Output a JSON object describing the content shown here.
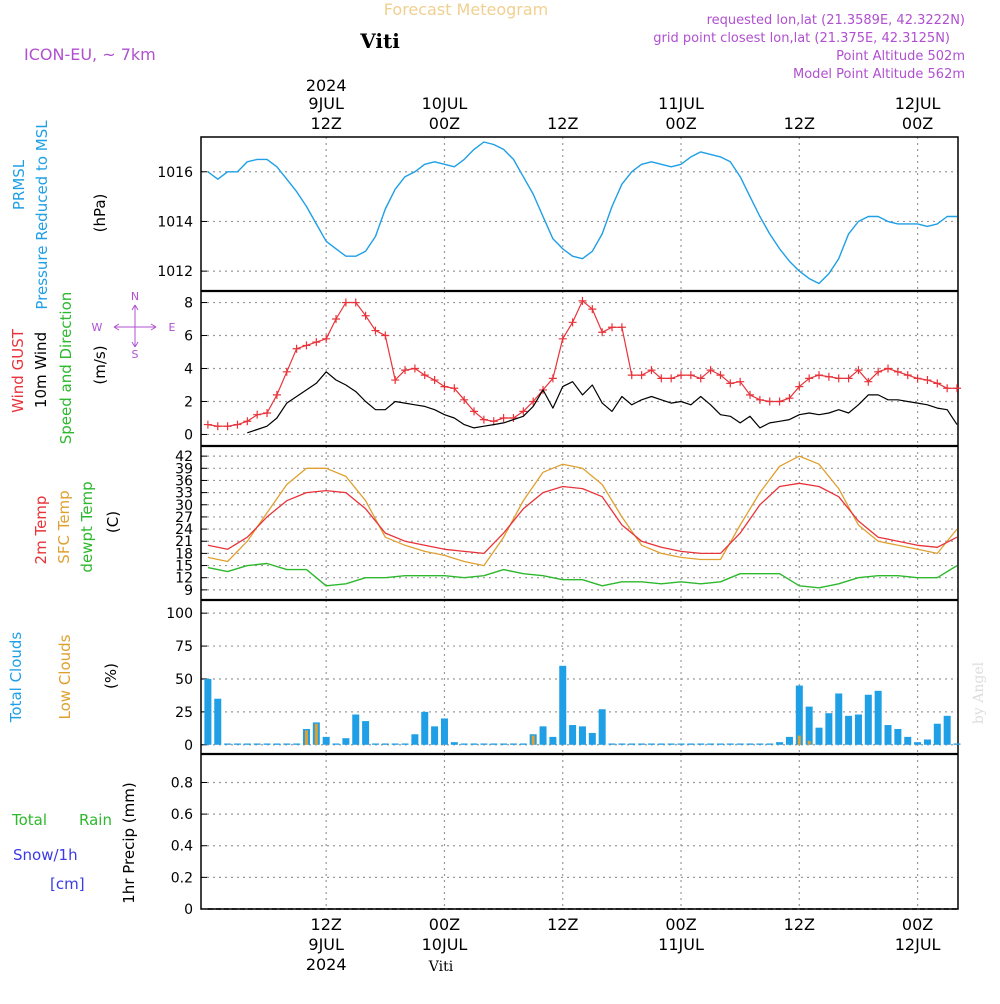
{
  "header": {
    "title": "Forecast Meteogram",
    "station": "Viti",
    "model": "ICON-EU, ~ 7km",
    "requested": "requested lon,lat (21.3589E, 42.3222N)",
    "grid_point": "grid point closest lon,lat (21.375E, 42.3125N)",
    "point_altitude": "Point Altitude 502m",
    "model_altitude": "Model Point Altitude 562m"
  },
  "footer": {
    "station": "Viti",
    "watermark": "by Angel"
  },
  "time_axis": {
    "top_year": "2024",
    "ticks": [
      {
        "x": 12,
        "top": [
          "9JUL",
          "12Z"
        ],
        "bottom": [
          "12Z",
          "9JUL",
          "2024"
        ]
      },
      {
        "x": 24,
        "top": [
          "10JUL",
          "00Z"
        ],
        "bottom": [
          "00Z",
          "10JUL"
        ]
      },
      {
        "x": 36,
        "top": [
          "12Z"
        ],
        "bottom": [
          "12Z"
        ]
      },
      {
        "x": 48,
        "top": [
          "11JUL",
          "00Z"
        ],
        "bottom": [
          "00Z",
          "11JUL"
        ]
      },
      {
        "x": 60,
        "top": [
          "12Z"
        ],
        "bottom": [
          "12Z"
        ]
      },
      {
        "x": 72,
        "top": [
          "12JUL",
          "00Z"
        ],
        "bottom": [
          "00Z",
          "12JUL"
        ]
      }
    ]
  },
  "colors": {
    "pressure": "#1e9fe6",
    "gust": "#e8333a",
    "wind": "#000000",
    "direction_label": "#2db82d",
    "temp2m": "#e8333a",
    "sfc_temp": "#e0a030",
    "dewpt": "#2db82d",
    "total_clouds": "#1e9fe6",
    "low_clouds": "#e0a030",
    "rain": "#2db82d",
    "snow": "#3a3ae6",
    "header_title": "#f0d090",
    "header_info": "#b050d0",
    "compass": "#b050d0"
  },
  "chart_data": [
    {
      "type": "line",
      "panel": "pressure",
      "labels": [
        "PRMSL",
        "Pressure Reduced to MSL",
        "(hPa)"
      ],
      "yticks": [
        1012,
        1014,
        1016
      ],
      "ylim": [
        1011.2,
        1017.4
      ],
      "series": [
        {
          "name": "PRMSL",
          "x": [
            0,
            1,
            2,
            3,
            4,
            5,
            6,
            7,
            8,
            9,
            10,
            11,
            12,
            13,
            14,
            15,
            16,
            17,
            18,
            19,
            20,
            21,
            22,
            23,
            24,
            25,
            26,
            27,
            28,
            29,
            30,
            31,
            32,
            33,
            34,
            35,
            36,
            37,
            38,
            39,
            40,
            41,
            42,
            43,
            44,
            45,
            46,
            47,
            48,
            49,
            50,
            51,
            52,
            53,
            54,
            55,
            56,
            57,
            58,
            59,
            60,
            61,
            62,
            63,
            64,
            65,
            66,
            67,
            68,
            69,
            70,
            71,
            72,
            73,
            74,
            75,
            76
          ],
          "values": [
            1016.0,
            1015.7,
            1016.0,
            1016.0,
            1016.4,
            1016.5,
            1016.5,
            1016.2,
            1015.7,
            1015.2,
            1014.6,
            1013.9,
            1013.2,
            1012.9,
            1012.6,
            1012.6,
            1012.8,
            1013.4,
            1014.5,
            1015.3,
            1015.8,
            1016.0,
            1016.3,
            1016.4,
            1016.3,
            1016.2,
            1016.5,
            1016.9,
            1017.2,
            1017.1,
            1016.9,
            1016.5,
            1015.8,
            1015.1,
            1014.2,
            1013.3,
            1012.9,
            1012.6,
            1012.5,
            1012.8,
            1013.5,
            1014.6,
            1015.5,
            1016.0,
            1016.3,
            1016.4,
            1016.3,
            1016.2,
            1016.3,
            1016.6,
            1016.8,
            1016.7,
            1016.6,
            1016.4,
            1015.8,
            1015.0,
            1014.2,
            1013.5,
            1012.9,
            1012.4,
            1012.0,
            1011.7,
            1011.5,
            1011.9,
            1012.5,
            1013.5,
            1014.0,
            1014.2,
            1014.2,
            1014.0,
            1013.9,
            1013.9,
            1013.9,
            1013.8,
            1013.9,
            1014.2,
            1014.2
          ]
        }
      ]
    },
    {
      "type": "line",
      "panel": "wind",
      "labels": [
        "Wind GUST",
        "10m Wind",
        "Speed and Direction",
        "(m/s)"
      ],
      "compass": {
        "n": "N",
        "s": "S",
        "w": "W",
        "e": "E"
      },
      "yticks": [
        0,
        2,
        4,
        6,
        8
      ],
      "ylim": [
        -0.7,
        8.7
      ],
      "series": [
        {
          "name": "Wind GUST",
          "x": [
            0,
            1,
            2,
            3,
            4,
            5,
            6,
            7,
            8,
            9,
            10,
            11,
            12,
            13,
            14,
            15,
            16,
            17,
            18,
            19,
            20,
            21,
            22,
            23,
            24,
            25,
            26,
            27,
            28,
            29,
            30,
            31,
            32,
            33,
            34,
            35,
            36,
            37,
            38,
            39,
            40,
            41,
            42,
            43,
            44,
            45,
            46,
            47,
            48,
            49,
            50,
            51,
            52,
            53,
            54,
            55,
            56,
            57,
            58,
            59,
            60,
            61,
            62,
            63,
            64,
            65,
            66,
            67,
            68,
            69,
            70,
            71,
            72,
            73,
            74,
            75,
            76
          ],
          "values": [
            0.6,
            0.5,
            0.5,
            0.6,
            0.8,
            1.2,
            1.3,
            2.4,
            3.8,
            5.2,
            5.4,
            5.6,
            5.8,
            7.0,
            8.0,
            8.0,
            7.2,
            6.3,
            6.0,
            3.3,
            3.9,
            4.0,
            3.6,
            3.3,
            2.9,
            2.8,
            2.1,
            1.4,
            0.9,
            0.8,
            1.0,
            1.0,
            1.4,
            2.0,
            2.7,
            3.4,
            5.8,
            6.8,
            8.1,
            7.6,
            6.2,
            6.5,
            6.5,
            3.6,
            3.6,
            3.9,
            3.4,
            3.4,
            3.6,
            3.6,
            3.4,
            3.9,
            3.6,
            3.1,
            3.2,
            2.4,
            2.1,
            2.0,
            2.0,
            2.2,
            2.9,
            3.4,
            3.6,
            3.5,
            3.4,
            3.4,
            3.9,
            3.2,
            3.8,
            4.0,
            3.8,
            3.6,
            3.4,
            3.3,
            3.1,
            2.8,
            2.8
          ]
        },
        {
          "name": "10m Wind",
          "x": [
            0,
            1,
            2,
            3,
            4,
            5,
            6,
            7,
            8,
            9,
            10,
            11,
            12,
            13,
            14,
            15,
            16,
            17,
            18,
            19,
            20,
            21,
            22,
            23,
            24,
            25,
            26,
            27,
            28,
            29,
            30,
            31,
            32,
            33,
            34,
            35,
            36,
            37,
            38,
            39,
            40,
            41,
            42,
            43,
            44,
            45,
            46,
            47,
            48,
            49,
            50,
            51,
            52,
            53,
            54,
            55,
            56,
            57,
            58,
            59,
            60,
            61,
            62,
            63,
            64,
            65,
            66,
            67,
            68,
            69,
            70,
            71,
            72,
            73,
            74,
            75,
            76
          ],
          "values": [
            null,
            null,
            null,
            null,
            0.1,
            0.3,
            0.5,
            1.0,
            1.9,
            2.3,
            2.7,
            3.1,
            3.8,
            3.3,
            3.0,
            2.6,
            2.0,
            1.5,
            1.5,
            2.0,
            1.9,
            1.8,
            1.7,
            1.5,
            1.2,
            1.0,
            0.6,
            0.4,
            0.5,
            0.6,
            0.7,
            0.9,
            1.1,
            1.7,
            2.7,
            1.6,
            2.9,
            3.2,
            2.4,
            3.0,
            1.9,
            1.4,
            2.3,
            1.8,
            2.1,
            2.3,
            2.1,
            1.9,
            2.0,
            1.8,
            2.3,
            1.8,
            1.2,
            1.1,
            0.7,
            1.1,
            0.4,
            0.7,
            0.8,
            0.9,
            1.2,
            1.3,
            1.2,
            1.3,
            1.5,
            1.3,
            1.8,
            2.4,
            2.4,
            2.1,
            2.1,
            2.0,
            1.9,
            1.8,
            1.6,
            1.5,
            0.6
          ]
        }
      ]
    },
    {
      "type": "line",
      "panel": "temperature",
      "labels": [
        "2m Temp",
        "SFC Temp",
        "dewpt Temp",
        "(C)"
      ],
      "yticks": [
        9,
        12,
        15,
        18,
        21,
        24,
        27,
        30,
        33,
        36,
        39,
        42
      ],
      "ylim": [
        6.5,
        44.5
      ],
      "series": [
        {
          "name": "2m Temp",
          "x": [
            0,
            2,
            4,
            6,
            8,
            10,
            12,
            14,
            16,
            18,
            20,
            22,
            24,
            26,
            28,
            30,
            32,
            34,
            36,
            38,
            40,
            42,
            44,
            46,
            48,
            50,
            52,
            54,
            56,
            58,
            60,
            62,
            64,
            66,
            68,
            70,
            72,
            74,
            76
          ],
          "values": [
            20,
            19,
            22,
            27,
            31,
            33,
            33.5,
            33,
            29,
            23,
            21,
            20,
            19,
            18.5,
            18,
            23,
            29,
            33,
            34.5,
            34,
            32,
            25,
            21,
            19.5,
            18.5,
            18,
            18,
            23,
            30,
            34.5,
            35.3,
            34.5,
            32,
            26,
            22,
            21,
            20,
            19.5,
            22
          ]
        },
        {
          "name": "SFC Temp",
          "x": [
            0,
            2,
            4,
            6,
            8,
            10,
            12,
            14,
            16,
            18,
            20,
            22,
            24,
            26,
            28,
            30,
            32,
            34,
            36,
            38,
            40,
            42,
            44,
            46,
            48,
            50,
            52,
            54,
            56,
            58,
            60,
            62,
            64,
            66,
            68,
            70,
            72,
            74,
            76
          ],
          "values": [
            17,
            16,
            21,
            28,
            35,
            39,
            39,
            37,
            31,
            22,
            20,
            18.5,
            17.5,
            16,
            15,
            22,
            31,
            38,
            40,
            39,
            35,
            27,
            20,
            18,
            17,
            16.5,
            16.5,
            25,
            33,
            39.5,
            42,
            40,
            34,
            25,
            21,
            20,
            19,
            18,
            24
          ]
        },
        {
          "name": "dewpt Temp",
          "x": [
            0,
            2,
            4,
            6,
            8,
            10,
            12,
            14,
            16,
            18,
            20,
            22,
            24,
            26,
            28,
            30,
            32,
            34,
            36,
            38,
            40,
            42,
            44,
            46,
            48,
            50,
            52,
            54,
            56,
            58,
            60,
            62,
            64,
            66,
            68,
            70,
            72,
            74,
            76
          ],
          "values": [
            14.5,
            13.5,
            15,
            15.5,
            14,
            14,
            10,
            10.5,
            12,
            12,
            12.5,
            12.5,
            12.5,
            12,
            12.5,
            14,
            13,
            12.5,
            11.5,
            11.5,
            10,
            11,
            11,
            10.5,
            11,
            10.5,
            11,
            13,
            13,
            13,
            10,
            9.5,
            10.5,
            12,
            12.5,
            12.5,
            12,
            12,
            15
          ]
        }
      ]
    },
    {
      "type": "bar",
      "panel": "clouds",
      "labels": [
        "Total Clouds",
        "Low Clouds",
        "(%)"
      ],
      "yticks": [
        0,
        25,
        50,
        75,
        100
      ],
      "ylim": [
        -7,
        110
      ],
      "series": [
        {
          "name": "Total Clouds",
          "x": [
            0,
            1,
            2,
            3,
            4,
            5,
            6,
            7,
            8,
            9,
            10,
            11,
            12,
            13,
            14,
            15,
            16,
            17,
            18,
            19,
            20,
            21,
            22,
            23,
            24,
            25,
            26,
            27,
            28,
            29,
            30,
            31,
            32,
            33,
            34,
            35,
            36,
            37,
            38,
            39,
            40,
            41,
            42,
            43,
            44,
            45,
            46,
            47,
            48,
            49,
            50,
            51,
            52,
            53,
            54,
            55,
            56,
            57,
            58,
            59,
            60,
            61,
            62,
            63,
            64,
            65,
            66,
            67,
            68,
            69,
            70,
            71,
            72,
            73,
            74,
            75,
            76
          ],
          "values": [
            50,
            35,
            1,
            1,
            1,
            1,
            1,
            1,
            1,
            1,
            12,
            17,
            6,
            1,
            5,
            23,
            18,
            1,
            1,
            1,
            1,
            8,
            25,
            14,
            20,
            2,
            1,
            1,
            1,
            1,
            1,
            1,
            1,
            8,
            14,
            6,
            60,
            15,
            14,
            9,
            27,
            1,
            1,
            1,
            1,
            1,
            1,
            1,
            1,
            1,
            1,
            1,
            1,
            1,
            1,
            1,
            1,
            1,
            2,
            6,
            45,
            29,
            13,
            24,
            39,
            22,
            23,
            38,
            41,
            15,
            12,
            6,
            2,
            4,
            16,
            22,
            1
          ]
        },
        {
          "name": "Low Clouds",
          "x": [
            10,
            11,
            33,
            60,
            61
          ],
          "values": [
            11,
            16,
            7,
            7,
            3
          ]
        }
      ]
    },
    {
      "type": "line",
      "panel": "precip",
      "labels": [
        "Total",
        "Rain",
        "Snow/1h",
        "[cm]",
        "1hr Precip (mm)"
      ],
      "yticks": [
        0,
        0.2,
        0.4,
        0.6,
        0.8
      ],
      "ylim": [
        0,
        0.98
      ],
      "series": [
        {
          "name": "Total Rain",
          "x": [
            0,
            76
          ],
          "values": [
            0,
            0
          ]
        }
      ]
    }
  ]
}
